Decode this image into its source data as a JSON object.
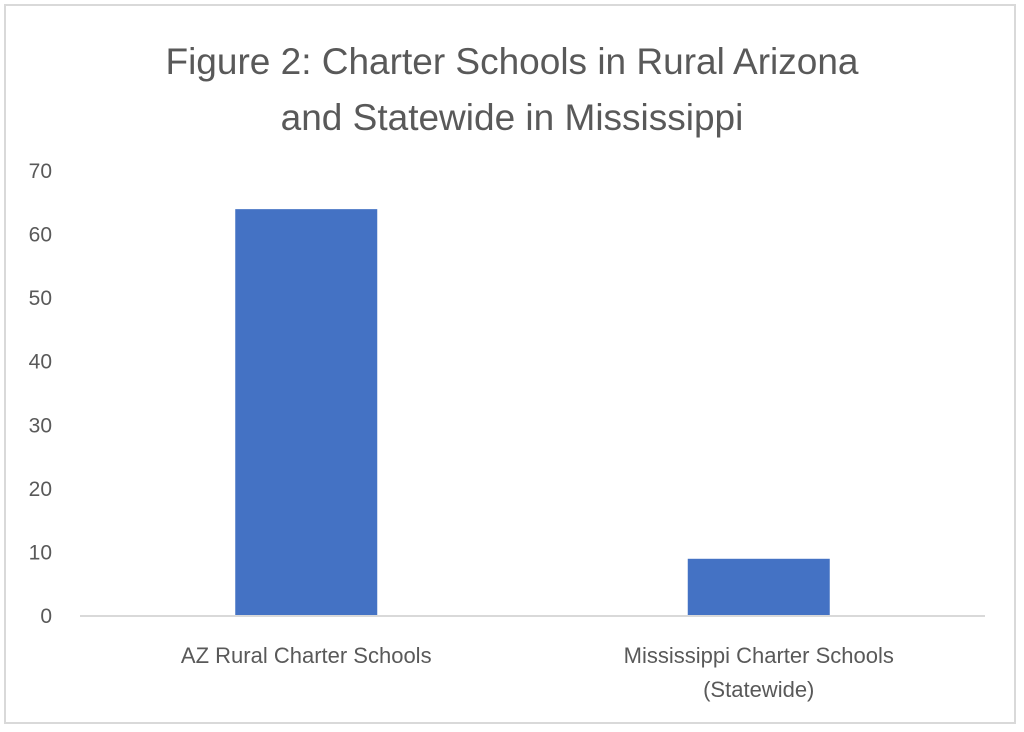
{
  "chart_data": {
    "type": "bar",
    "title_lines": [
      "Figure 2: Charter Schools in Rural Arizona",
      "and Statewide in Mississippi"
    ],
    "categories": [
      [
        "AZ Rural Charter Schools"
      ],
      [
        "Mississippi Charter Schools",
        "(Statewide)"
      ]
    ],
    "values": [
      64,
      9
    ],
    "ylim": [
      0,
      70
    ],
    "yticks": [
      "0",
      "10",
      "20",
      "30",
      "40",
      "50",
      "60",
      "70"
    ],
    "xlabel": "",
    "ylabel": "",
    "grid": false,
    "legend": "none",
    "bar_color": "#4472c4",
    "axis_color": "#d9d9d9",
    "text_color": "#595959"
  }
}
